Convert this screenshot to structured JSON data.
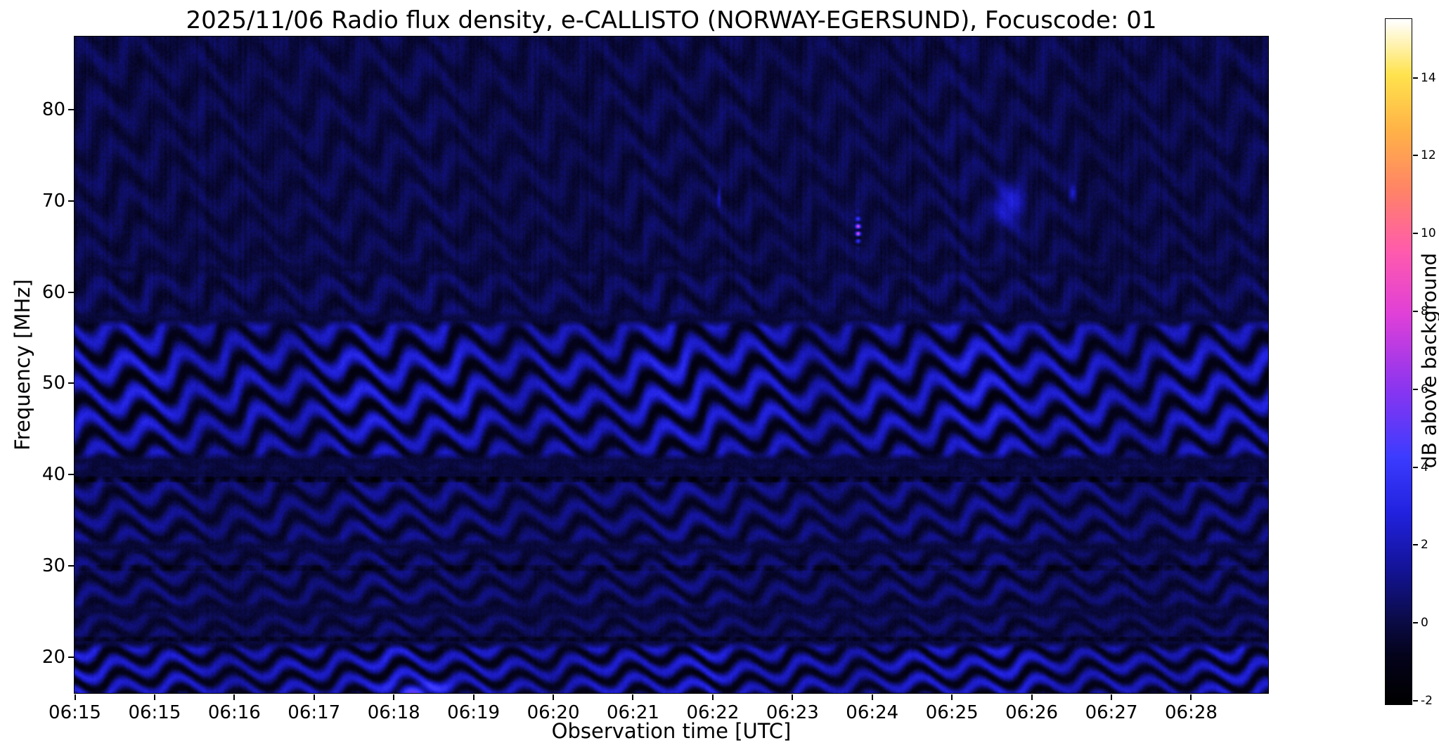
{
  "chart_data": {
    "type": "heatmap",
    "title": "2025/11/06  Radio flux density, e-CALLISTO (NORWAY-EGERSUND), Focuscode: 01",
    "xlabel": "Observation time [UTC]",
    "ylabel": "Frequency [MHz]",
    "start_time_label": "06:15",
    "duration_minutes": 15.0,
    "freq_range_mhz": [
      16,
      88
    ],
    "x_tick_labels": [
      "06:15",
      "06:15",
      "06:16",
      "06:17",
      "06:18",
      "06:19",
      "06:20",
      "06:21",
      "06:22",
      "06:23",
      "06:24",
      "06:25",
      "06:26",
      "06:27",
      "06:28"
    ],
    "x_tick_step_fraction": 0.0668,
    "y_tick_values_mhz": [
      20,
      30,
      40,
      50,
      60,
      70,
      80
    ],
    "grid": false,
    "colorbar": {
      "label": "dB above background",
      "tick_values": [
        -2,
        0,
        2,
        4,
        6,
        8,
        10,
        12,
        14
      ],
      "range_db": [
        -2.1,
        15.5
      ],
      "colormap_stops": [
        [
          0.0,
          "#000000"
        ],
        [
          0.07,
          "#04031c"
        ],
        [
          0.12,
          "#0b0b46"
        ],
        [
          0.2,
          "#14149b"
        ],
        [
          0.28,
          "#2222e0"
        ],
        [
          0.36,
          "#3c3cff"
        ],
        [
          0.46,
          "#8a35f0"
        ],
        [
          0.57,
          "#e040d8"
        ],
        [
          0.66,
          "#ff5aae"
        ],
        [
          0.75,
          "#ff8368"
        ],
        [
          0.84,
          "#ffb347"
        ],
        [
          0.92,
          "#ffe34d"
        ],
        [
          1.0,
          "#ffffff"
        ]
      ]
    },
    "background_level_db": -0.2,
    "stripe_wavelength_mhz": 2.0,
    "stripe_wavelength_slope": 0.016,
    "bands": [
      {
        "f_lo": 15.0,
        "f_hi": 21.6,
        "amplitude_db": 2.3
      },
      {
        "f_lo": 21.6,
        "f_hi": 25.0,
        "amplitude_db": 0.9
      },
      {
        "f_lo": 25.0,
        "f_hi": 32.0,
        "amplitude_db": 1.05
      },
      {
        "f_lo": 32.0,
        "f_hi": 40.0,
        "amplitude_db": 1.3
      },
      {
        "f_lo": 40.0,
        "f_hi": 41.5,
        "amplitude_db": 0.7
      },
      {
        "f_lo": 41.5,
        "f_hi": 57.0,
        "amplitude_db": 2.2
      },
      {
        "f_lo": 45.0,
        "f_hi": 54.0,
        "amplitude_db": 0.35
      },
      {
        "f_lo": 57.0,
        "f_hi": 62.5,
        "amplitude_db": 0.8
      },
      {
        "f_lo": 62.5,
        "f_hi": 89.0,
        "amplitude_db": 0.55
      }
    ],
    "dark_lines": [
      {
        "freq_mhz": 39.4,
        "half_width_mhz": 0.35,
        "depth_db": 1.3
      },
      {
        "freq_mhz": 29.7,
        "half_width_mhz": 0.3,
        "depth_db": 0.9
      },
      {
        "freq_mhz": 21.9,
        "half_width_mhz": 0.25,
        "depth_db": 0.8
      }
    ],
    "transients": [
      {
        "time_min": 9.85,
        "freq_mhz": 66.8,
        "sigma_min": 0.03,
        "sigma_mhz": 1.3,
        "peak_db": 10.0,
        "dashed": true
      },
      {
        "time_min": 11.75,
        "freq_mhz": 69.5,
        "sigma_min": 0.18,
        "sigma_mhz": 2.2,
        "peak_db": 2.8,
        "dashed": false
      },
      {
        "time_min": 8.1,
        "freq_mhz": 70.5,
        "sigma_min": 0.02,
        "sigma_mhz": 1.0,
        "peak_db": 2.5,
        "dashed": false
      },
      {
        "time_min": 12.55,
        "freq_mhz": 70.8,
        "sigma_min": 0.04,
        "sigma_mhz": 0.9,
        "peak_db": 2.6,
        "dashed": false
      },
      {
        "time_min": 4.35,
        "freq_mhz": 16.3,
        "sigma_min": 0.35,
        "sigma_mhz": 0.8,
        "peak_db": 2.8,
        "dashed": false
      }
    ]
  }
}
